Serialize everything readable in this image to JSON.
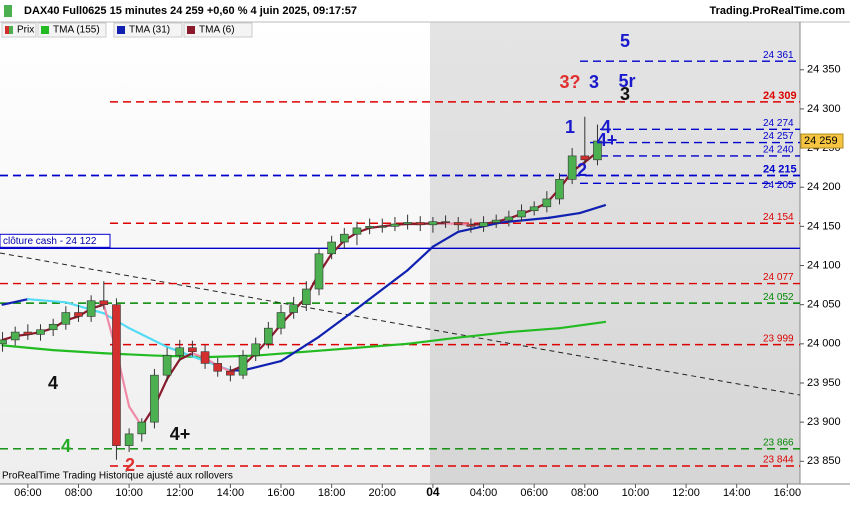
{
  "header": {
    "title": "DAX40 Full0625 15 minutes 24 259 +0,60 % 4 juin 2025, 09:17:57",
    "site": "Trading.ProRealTime.com",
    "footer": "ProRealTime Trading  Historique ajusté aux rollovers"
  },
  "chart_data": {
    "type": "candlestick",
    "xlim": [
      -1.1,
      30.5
    ],
    "xticks": [
      {
        "value": 0,
        "label": "06:00"
      },
      {
        "value": 2,
        "label": "08:00"
      },
      {
        "value": 4,
        "label": "10:00"
      },
      {
        "value": 6,
        "label": "12:00"
      },
      {
        "value": 8,
        "label": "14:00"
      },
      {
        "value": 10,
        "label": "16:00"
      },
      {
        "value": 12,
        "label": "18:00"
      },
      {
        "value": 14,
        "label": "20:00"
      },
      {
        "value": 16,
        "label": "04"
      },
      {
        "value": 18,
        "label": "04:00"
      },
      {
        "value": 20,
        "label": "06:00"
      },
      {
        "value": 22,
        "label": "08:00"
      },
      {
        "value": 24,
        "label": "10:00"
      },
      {
        "value": 26,
        "label": "12:00"
      },
      {
        "value": 28,
        "label": "14:00"
      },
      {
        "value": 30,
        "label": "16:00"
      }
    ],
    "ylim": [
      23821,
      24411
    ],
    "yticks": [
      {
        "value": 23850,
        "label": "23 850"
      },
      {
        "value": 23900,
        "label": "23 900"
      },
      {
        "value": 23950,
        "label": "23 950"
      },
      {
        "value": 24000,
        "label": "24 000"
      },
      {
        "value": 24050,
        "label": "24 050"
      },
      {
        "value": 24100,
        "label": "24 100"
      },
      {
        "value": 24150,
        "label": "24 150"
      },
      {
        "value": 24200,
        "label": "24 200"
      },
      {
        "value": 24250,
        "label": "24 250"
      },
      {
        "value": 24300,
        "label": "24 300"
      },
      {
        "value": 24350,
        "label": "24 350"
      }
    ],
    "candles": {
      "name": "Prix",
      "up_color": "#4caf50",
      "down_color": "#d32f2f",
      "x": [
        -1,
        -0.5,
        0,
        0.5,
        1,
        1.5,
        2,
        2.5,
        3,
        3.5,
        4,
        4.5,
        5,
        5.5,
        6,
        6.5,
        7,
        7.5,
        8,
        8.5,
        9,
        9.5,
        10,
        10.5,
        11,
        11.5,
        12,
        12.5,
        13,
        13.5,
        14,
        14.5,
        15,
        15.5,
        16,
        16.5,
        17,
        17.5,
        18,
        18.5,
        19,
        19.5,
        20,
        20.5,
        21,
        21.5,
        22,
        22.5
      ],
      "open": [
        24000,
        24005,
        24015,
        24012,
        24018,
        24025,
        24040,
        24035,
        24055,
        24050,
        23870,
        23885,
        23900,
        23960,
        23985,
        23995,
        23990,
        23975,
        23965,
        23960,
        23985,
        24000,
        24020,
        24040,
        24050,
        24070,
        24115,
        24130,
        24140,
        24148,
        24150,
        24150,
        24153,
        24155,
        24152,
        24156,
        24155,
        24152,
        24150,
        24155,
        24158,
        24162,
        24170,
        24175,
        24185,
        24210,
        24240,
        24235
      ],
      "high": [
        24015,
        24022,
        24025,
        24025,
        24032,
        24048,
        24050,
        24062,
        24080,
        24058,
        23892,
        23905,
        23968,
        23995,
        24005,
        24004,
        23998,
        23982,
        23972,
        23992,
        24008,
        24028,
        24050,
        24060,
        24080,
        24122,
        24138,
        24148,
        24156,
        24160,
        24160,
        24162,
        24165,
        24163,
        24162,
        24164,
        24162,
        24160,
        24163,
        24165,
        24170,
        24178,
        24182,
        24195,
        24218,
        24250,
        24290,
        24280
      ],
      "low": [
        23990,
        23998,
        24005,
        24004,
        24010,
        24018,
        24028,
        24028,
        24044,
        23852,
        23862,
        23875,
        23892,
        23952,
        23978,
        23984,
        23968,
        23958,
        23952,
        23955,
        23978,
        23994,
        24012,
        24032,
        24042,
        24062,
        24108,
        24122,
        24126,
        24140,
        24142,
        24144,
        24146,
        24144,
        24142,
        24148,
        24145,
        24142,
        24143,
        24148,
        24150,
        24156,
        24164,
        24168,
        24178,
        24204,
        24225,
        24228
      ],
      "close": [
        24005,
        24015,
        24012,
        24018,
        24025,
        24040,
        24035,
        24055,
        24050,
        23870,
        23885,
        23900,
        23960,
        23985,
        23995,
        23990,
        23975,
        23965,
        23960,
        23985,
        24000,
        24020,
        24040,
        24050,
        24070,
        24115,
        24130,
        24140,
        24148,
        24150,
        24150,
        24153,
        24155,
        24152,
        24156,
        24155,
        24152,
        24150,
        24155,
        24158,
        24162,
        24170,
        24175,
        24185,
        24210,
        24240,
        24235,
        24259
      ]
    },
    "series": [
      {
        "name": "TMA (155)",
        "color": "#22bb22",
        "color_down": "#22bb22",
        "x": [
          -1,
          1,
          3,
          5,
          7,
          9,
          11,
          13,
          15,
          17,
          19,
          21,
          22.8
        ],
        "values": [
          23998,
          23992,
          23988,
          23985,
          23983,
          23985,
          23990,
          23995,
          24000,
          24008,
          24015,
          24020,
          24028
        ]
      },
      {
        "name": "TMA (31)",
        "color": "#1020b0",
        "color_down": "#55dcf5",
        "x": [
          -1,
          0,
          1.5,
          3,
          4,
          5.5,
          7,
          8,
          8.5,
          10,
          11.5,
          13,
          15,
          16,
          17,
          18.7,
          20.6,
          21.8,
          22.8
        ],
        "values": [
          24050,
          24057,
          24053,
          24039,
          24020,
          23996,
          23978,
          23966,
          23966,
          23978,
          24009,
          24045,
          24094,
          24124,
          24143,
          24155,
          24161,
          24167,
          24177
        ]
      },
      {
        "name": "TMA (6)",
        "color": "#8b1a2b",
        "color_down": "#f08aa8",
        "x": [
          -1,
          -0.5,
          0,
          0.5,
          1,
          1.5,
          2,
          2.5,
          3,
          3.5,
          4,
          4.5,
          5,
          5.5,
          6,
          6.5,
          7,
          7.5,
          8,
          8.5,
          9,
          9.5,
          10,
          10.5,
          11,
          11.5,
          12,
          12.5,
          13,
          13.5,
          14,
          14.5,
          15,
          15.5,
          16,
          16.5,
          17,
          17.5,
          18,
          18.5,
          19,
          19.5,
          20,
          20.5,
          21,
          21.5,
          22,
          22.5
        ],
        "values": [
          24005,
          24010,
          24012,
          24015,
          24020,
          24030,
          24035,
          24045,
          24050,
          23990,
          23920,
          23895,
          23920,
          23955,
          23980,
          23988,
          23982,
          23972,
          23965,
          23972,
          23988,
          24005,
          24025,
          24042,
          24060,
          24090,
          24115,
          24132,
          24142,
          24148,
          24150,
          24152,
          24153,
          24153,
          24154,
          24154,
          24153,
          24152,
          24153,
          24156,
          24160,
          24166,
          24172,
          24180,
          24198,
          24220,
          24232,
          24245
        ]
      }
    ],
    "levels": [
      {
        "value": 24361,
        "label": "24 361",
        "color": "#0000cc"
      },
      {
        "value": 24309,
        "label": "24 309",
        "color": "#dd0000"
      },
      {
        "value": 24274,
        "label": "24 274",
        "color": "#0000cc"
      },
      {
        "value": 24257,
        "label": "24 257",
        "color": "#0000cc"
      },
      {
        "value": 24240,
        "label": "24 240",
        "color": "#0000cc"
      },
      {
        "value": 24215,
        "label": "24 215",
        "color": "#0000cc"
      },
      {
        "value": 24205,
        "label": "24 205",
        "color": "#0000cc"
      },
      {
        "value": 24154,
        "label": "24 154",
        "color": "#dd0000"
      },
      {
        "value": 24077,
        "label": "24 077",
        "color": "#dd0000"
      },
      {
        "value": 24052,
        "label": "24 052",
        "color": "#008800"
      },
      {
        "value": 23999,
        "label": "23 999",
        "color": "#dd0000"
      },
      {
        "value": 23866,
        "label": "23 866",
        "color": "#008800"
      },
      {
        "value": 23844,
        "label": "23 844",
        "color": "#dd0000"
      }
    ],
    "close_line": {
      "value": 24122,
      "label": "clôture cash -  24 122",
      "color": "#0000cc"
    },
    "last": {
      "value": 24259,
      "label": "24 259"
    },
    "annotations": [
      {
        "text": "5",
        "color": "#1a1acc"
      },
      {
        "text": "3?",
        "color": "#e03030"
      },
      {
        "text": "3",
        "color": "#1a1acc"
      },
      {
        "text": "5r",
        "color": "#1a1acc"
      },
      {
        "text": "3",
        "color": "#111111"
      },
      {
        "text": "1",
        "color": "#1a1acc"
      },
      {
        "text": "4",
        "color": "#1a1acc"
      },
      {
        "text": "4+",
        "color": "#1a1acc"
      },
      {
        "text": "2",
        "color": "#1a1acc"
      },
      {
        "text": "4",
        "color": "#111111"
      },
      {
        "text": "4+",
        "color": "#111111"
      },
      {
        "text": "4",
        "color": "#22aa22"
      },
      {
        "text": "2",
        "color": "#e03030"
      }
    ]
  }
}
